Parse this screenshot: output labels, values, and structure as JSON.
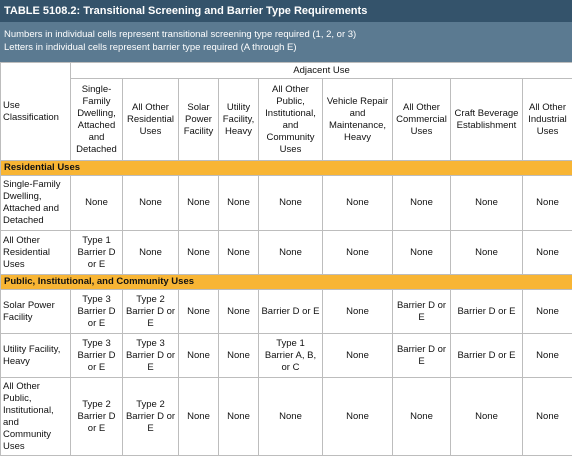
{
  "table": {
    "title": "TABLE 5108.2: Transitional Screening and Barrier Type Requirements",
    "notes": [
      "Numbers in individual cells represent transitional screening type required (1, 2, or 3)",
      "Letters in individual cells represent barrier type required (A through E)"
    ],
    "header": {
      "group": "Adjacent Use",
      "columns": [
        "Use Classification",
        "Single-Family Dwelling, Attached and Detached",
        "All Other Residential Uses",
        "Solar Power Facility",
        "Utility Facility, Heavy",
        "All Other Public, Institutional, and Community Uses",
        "Vehicle Repair and Maintenance, Heavy",
        "All Other Commercial Uses",
        "Craft Beverage Establishment",
        "All Other Industrial Uses"
      ]
    },
    "sections": [
      {
        "title": "Residential Uses",
        "rows": [
          {
            "label": "Single-Family Dwelling, Attached and Detached",
            "cells": [
              "None",
              "None",
              "None",
              "None",
              "None",
              "None",
              "None",
              "None",
              "None"
            ]
          },
          {
            "label": "All Other Residential Uses",
            "cells": [
              "Type 1 Barrier D or E",
              "None",
              "None",
              "None",
              "None",
              "None",
              "None",
              "None",
              "None"
            ]
          }
        ]
      },
      {
        "title": "Public, Institutional, and Community Uses",
        "rows": [
          {
            "label": "Solar Power Facility",
            "cells": [
              "Type 3 Barrier D or E",
              "Type 2 Barrier D or E",
              "None",
              "None",
              "Barrier D or E",
              "None",
              "Barrier D or E",
              "Barrier D or E",
              "None"
            ]
          },
          {
            "label": "Utility Facility, Heavy",
            "cells": [
              "Type 3 Barrier D or E",
              "Type 3 Barrier D or E",
              "None",
              "None",
              "Type 1 Barrier A, B, or C",
              "None",
              "Barrier D or E",
              "Barrier D or E",
              "None"
            ]
          },
          {
            "label": "All Other Public, Institutional, and Community Uses",
            "cells": [
              "Type 2 Barrier D or E",
              "Type 2 Barrier D or E",
              "None",
              "None",
              "None",
              "None",
              "None",
              "None",
              "None"
            ]
          }
        ]
      }
    ]
  }
}
